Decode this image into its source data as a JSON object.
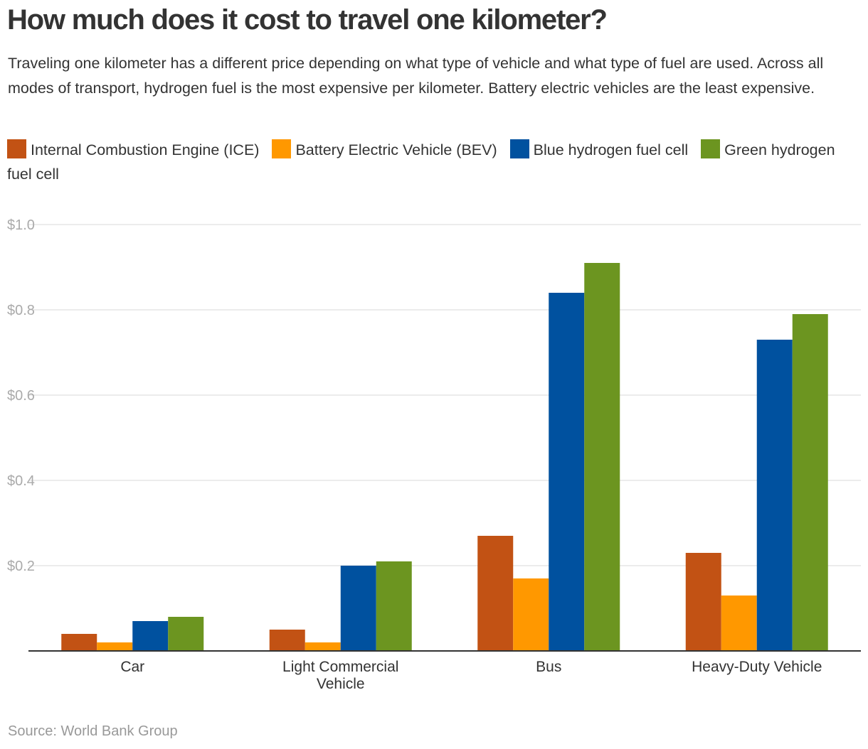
{
  "chart_data": {
    "type": "bar",
    "title": "How much does it cost to travel one kilometer?",
    "subtitle": "Traveling one kilometer has a different price depending on what type of vehicle and what type of fuel are used. Across all modes of transport, hydrogen fuel is the most expensive per kilometer. Battery electric vehicles are the least expensive.",
    "categories": [
      [
        "Car"
      ],
      [
        "Light Commercial",
        "Vehicle"
      ],
      [
        "Bus"
      ],
      [
        "Heavy-Duty Vehicle"
      ]
    ],
    "series": [
      {
        "name": "Internal Combustion Engine (ICE)",
        "color": "#c25214",
        "values": [
          0.04,
          0.05,
          0.27,
          0.23
        ]
      },
      {
        "name": "Battery Electric Vehicle (BEV)",
        "color": "#ff9800",
        "values": [
          0.02,
          0.02,
          0.17,
          0.13
        ]
      },
      {
        "name": "Blue hydrogen fuel cell",
        "color": "#00519f",
        "values": [
          0.07,
          0.2,
          0.84,
          0.73
        ]
      },
      {
        "name": "Green hydrogen fuel cell",
        "color": "#6c9520",
        "values": [
          0.08,
          0.21,
          0.91,
          0.79
        ]
      }
    ],
    "ylim": [
      0,
      1.0
    ],
    "yticks": [
      {
        "value": 0.2,
        "label": "$0.2"
      },
      {
        "value": 0.4,
        "label": "$0.4"
      },
      {
        "value": 0.6,
        "label": "$0.6"
      },
      {
        "value": 0.8,
        "label": "$0.8"
      },
      {
        "value": 1.0,
        "label": "$1.0"
      }
    ],
    "xlabel": "",
    "ylabel": "",
    "grid": true,
    "legend_position": "top",
    "source": "Source: World Bank Group"
  },
  "colors": {
    "text": "#333333",
    "grid": "#e6e6e6",
    "axis": "#333333",
    "tick_label": "#aaaaaa",
    "source": "#999999"
  }
}
